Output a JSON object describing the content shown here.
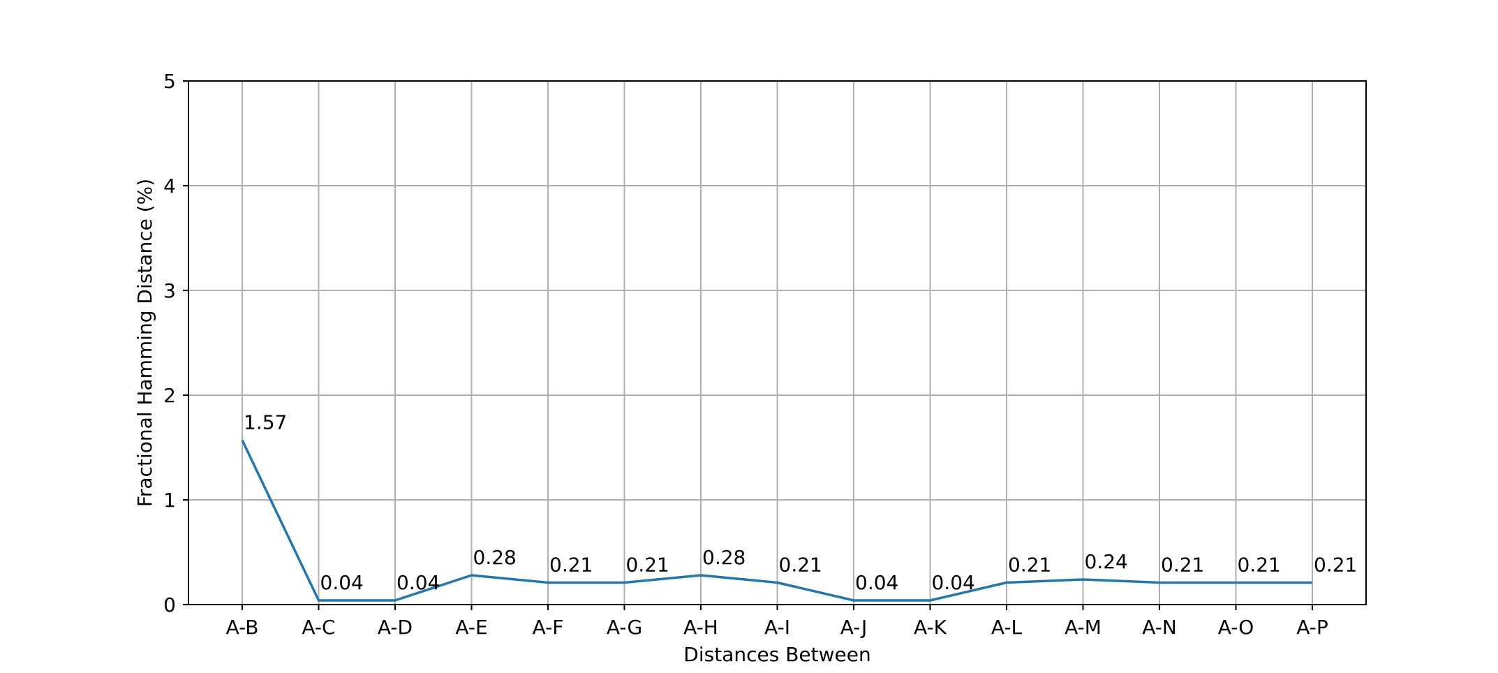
{
  "chart_data": {
    "type": "line",
    "title": "",
    "xlabel": "Distances Between",
    "ylabel": "Fractional Hamming Distance (%)",
    "categories": [
      "A-B",
      "A-C",
      "A-D",
      "A-E",
      "A-F",
      "A-G",
      "A-H",
      "A-I",
      "A-J",
      "A-K",
      "A-L",
      "A-M",
      "A-N",
      "A-O",
      "A-P"
    ],
    "series": [
      {
        "values": [
          1.57,
          0.04,
          0.04,
          0.28,
          0.21,
          0.21,
          0.28,
          0.21,
          0.04,
          0.04,
          0.21,
          0.24,
          0.21,
          0.21,
          0.21
        ]
      }
    ],
    "data_labels": [
      "1.57",
      "0.04",
      "0.04",
      "0.28",
      "0.21",
      "0.21",
      "0.28",
      "0.21",
      "0.04",
      "0.04",
      "0.21",
      "0.24",
      "0.21",
      "0.21",
      "0.21"
    ],
    "ylim": [
      0,
      5
    ],
    "yticks": [
      "0",
      "1",
      "2",
      "3",
      "4",
      "5"
    ],
    "grid": true,
    "line_color": "#1f77b4",
    "grid_color": "#b0b0b0"
  }
}
